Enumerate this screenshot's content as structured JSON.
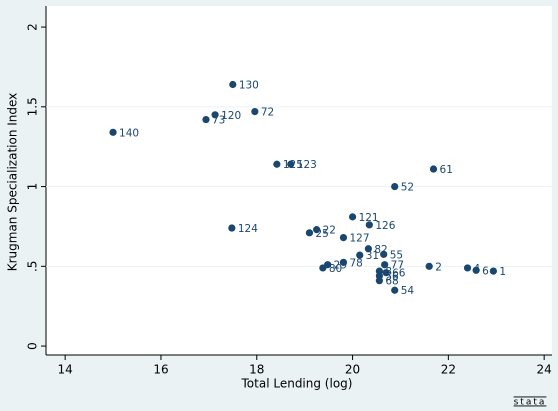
{
  "chart_data": {
    "type": "scatter",
    "xlabel": "Total Lending (log)",
    "ylabel": "Krugman Specialization Index",
    "color": "#1a476f",
    "grid": true,
    "xlim": [
      13.6,
      24.08
    ],
    "ylim": [
      -0.056,
      2.107
    ],
    "xticks": [
      14,
      16,
      18,
      20,
      22,
      24
    ],
    "yticks": [
      0,
      {
        "value": 0.5,
        "label": ".5"
      },
      1,
      1.5,
      2
    ],
    "x": [
      17.5,
      17.96,
      17.13,
      16.94,
      15.0,
      18.42,
      18.71,
      21.69,
      20.88,
      17.48,
      20.0,
      20.35,
      19.25,
      19.1,
      19.81,
      20.33,
      20.65,
      20.15,
      20.67,
      19.81,
      21.6,
      22.4,
      22.58,
      22.94,
      19.38,
      19.48,
      20.56,
      20.7,
      20.56,
      20.56,
      20.88
    ],
    "y": [
      1.64,
      1.47,
      1.45,
      1.42,
      1.34,
      1.14,
      1.14,
      1.11,
      1.0,
      0.74,
      0.81,
      0.76,
      0.73,
      0.71,
      0.68,
      0.61,
      0.575,
      0.57,
      0.51,
      0.525,
      0.5,
      0.49,
      0.475,
      0.47,
      0.49,
      0.51,
      0.47,
      0.46,
      0.44,
      0.41,
      0.35
    ],
    "labels": [
      "130",
      "72",
      "120",
      "73",
      "140",
      "125",
      "123",
      "61",
      "52",
      "124",
      "121",
      "126",
      "22",
      "25",
      "127",
      "82",
      "55",
      "31",
      "77",
      "78",
      "2",
      "4",
      "6",
      "1",
      "80",
      "29",
      "8",
      "66",
      "56",
      "68",
      "54"
    ],
    "brand": "stata"
  }
}
